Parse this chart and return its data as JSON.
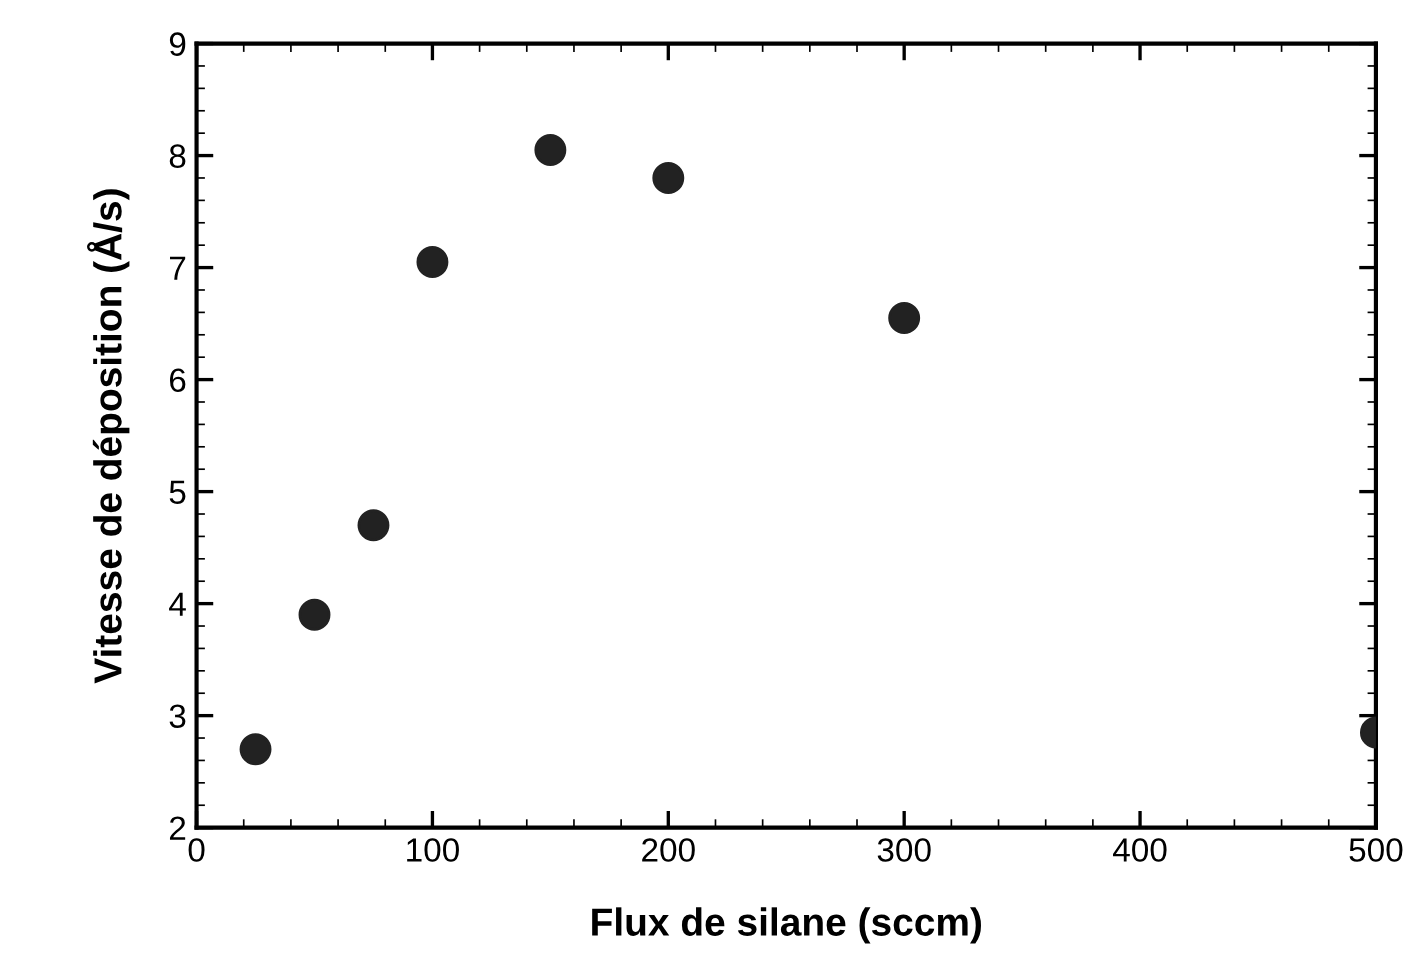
{
  "chart_data": {
    "type": "scatter",
    "xlabel": "Flux de silane (sccm)",
    "ylabel": "Vitesse de déposition (Å/s)",
    "x": [
      25,
      50,
      75,
      100,
      150,
      200,
      300,
      500
    ],
    "values": [
      2.7,
      3.9,
      4.7,
      7.05,
      8.05,
      7.8,
      6.55,
      2.85
    ],
    "color": "#222222",
    "marker": "circle",
    "xlim": [
      0,
      500
    ],
    "ylim": [
      2,
      9
    ],
    "xticks": [
      0,
      100,
      200,
      300,
      400,
      500
    ],
    "yticks": [
      2,
      3,
      4,
      5,
      6,
      7,
      8,
      9
    ],
    "grid": false,
    "legend": false
  }
}
